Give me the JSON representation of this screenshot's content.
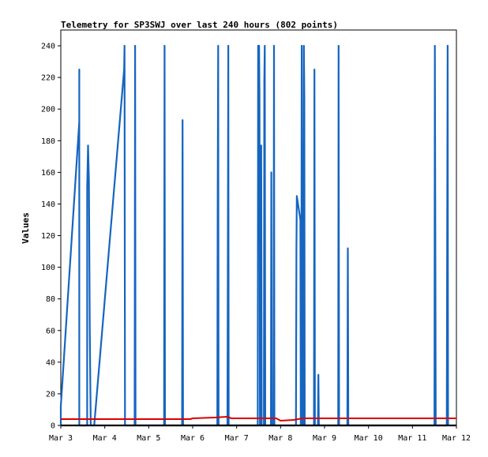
{
  "chart_data": {
    "type": "line",
    "title": "Telemetry for SP3SWJ over last 240 hours (802 points)",
    "xlabel": "",
    "ylabel": "Values",
    "x_unit": "days",
    "xlim": [
      0,
      9
    ],
    "ylim": [
      0,
      250
    ],
    "x_ticks": [
      {
        "x": 0,
        "label": "Mar 3"
      },
      {
        "x": 1,
        "label": "Mar 4"
      },
      {
        "x": 2,
        "label": "Mar 5"
      },
      {
        "x": 3,
        "label": "Mar 6"
      },
      {
        "x": 4,
        "label": "Mar 7"
      },
      {
        "x": 5,
        "label": "Mar 8"
      },
      {
        "x": 6,
        "label": "Mar 9"
      },
      {
        "x": 7,
        "label": "Mar 10"
      },
      {
        "x": 8,
        "label": "Mar 11"
      },
      {
        "x": 9,
        "label": "Mar 12"
      }
    ],
    "y_ticks": [
      0,
      20,
      40,
      60,
      80,
      100,
      120,
      140,
      160,
      180,
      200,
      220,
      240
    ],
    "grid": false,
    "legend": "none",
    "series": [
      {
        "color": "#1565c0",
        "points": [
          [
            0.0,
            0
          ],
          [
            0.0,
            12
          ],
          [
            0.42,
            192
          ],
          [
            0.42,
            225
          ],
          [
            0.42,
            0
          ],
          [
            0.6,
            0
          ],
          [
            0.6,
            150
          ],
          [
            0.62,
            177
          ],
          [
            0.64,
            155
          ],
          [
            0.66,
            60
          ],
          [
            0.68,
            0
          ],
          [
            0.76,
            0
          ],
          [
            1.44,
            225
          ],
          [
            1.45,
            240
          ],
          [
            1.46,
            0
          ],
          [
            1.68,
            0
          ],
          [
            1.69,
            240
          ],
          [
            1.7,
            0
          ],
          [
            2.35,
            0
          ],
          [
            2.36,
            240
          ],
          [
            2.37,
            0
          ],
          [
            2.76,
            0
          ],
          [
            2.77,
            193
          ],
          [
            2.78,
            0
          ],
          [
            3.56,
            0
          ],
          [
            3.57,
            145
          ],
          [
            3.58,
            240
          ],
          [
            3.59,
            0
          ],
          [
            3.79,
            0
          ],
          [
            3.8,
            97
          ],
          [
            3.81,
            240
          ],
          [
            3.82,
            0
          ],
          [
            4.48,
            0
          ],
          [
            4.49,
            240
          ],
          [
            4.51,
            240
          ],
          [
            4.52,
            208
          ],
          [
            4.53,
            0
          ],
          [
            4.55,
            0
          ],
          [
            4.56,
            177
          ],
          [
            4.57,
            0
          ],
          [
            4.62,
            0
          ],
          [
            4.63,
            217
          ],
          [
            4.64,
            240
          ],
          [
            4.65,
            0
          ],
          [
            4.78,
            0
          ],
          [
            4.79,
            160
          ],
          [
            4.8,
            0
          ],
          [
            4.84,
            0
          ],
          [
            4.85,
            240
          ],
          [
            4.86,
            0
          ],
          [
            5.35,
            0
          ],
          [
            5.36,
            112
          ],
          [
            5.37,
            145
          ],
          [
            5.45,
            130
          ],
          [
            5.46,
            0
          ],
          [
            5.47,
            0
          ],
          [
            5.48,
            240
          ],
          [
            5.5,
            0
          ],
          [
            5.52,
            0
          ],
          [
            5.53,
            240
          ],
          [
            5.54,
            208
          ],
          [
            5.55,
            0
          ],
          [
            5.76,
            0
          ],
          [
            5.77,
            225
          ],
          [
            5.78,
            0
          ],
          [
            5.85,
            0
          ],
          [
            5.86,
            32
          ],
          [
            5.87,
            0
          ],
          [
            6.31,
            0
          ],
          [
            6.32,
            240
          ],
          [
            6.33,
            0
          ],
          [
            6.52,
            0
          ],
          [
            6.53,
            112
          ],
          [
            6.54,
            0
          ],
          [
            8.5,
            0
          ],
          [
            8.51,
            240
          ],
          [
            8.52,
            120
          ],
          [
            8.53,
            0
          ],
          [
            8.78,
            0
          ],
          [
            8.79,
            120
          ],
          [
            8.8,
            240
          ],
          [
            8.81,
            0
          ]
        ]
      },
      {
        "color": "#dd0000",
        "points": [
          [
            0.0,
            4
          ],
          [
            2.95,
            4
          ],
          [
            3.0,
            4.5
          ],
          [
            3.5,
            5
          ],
          [
            3.78,
            5.5
          ],
          [
            3.88,
            4.5
          ],
          [
            4.9,
            4.5
          ],
          [
            5.0,
            3
          ],
          [
            5.3,
            3.5
          ],
          [
            5.5,
            4.5
          ],
          [
            9.0,
            4.5
          ]
        ]
      },
      {
        "color": "#000000",
        "points": [
          [
            0.0,
            0
          ],
          [
            9.0,
            0
          ]
        ]
      }
    ]
  }
}
